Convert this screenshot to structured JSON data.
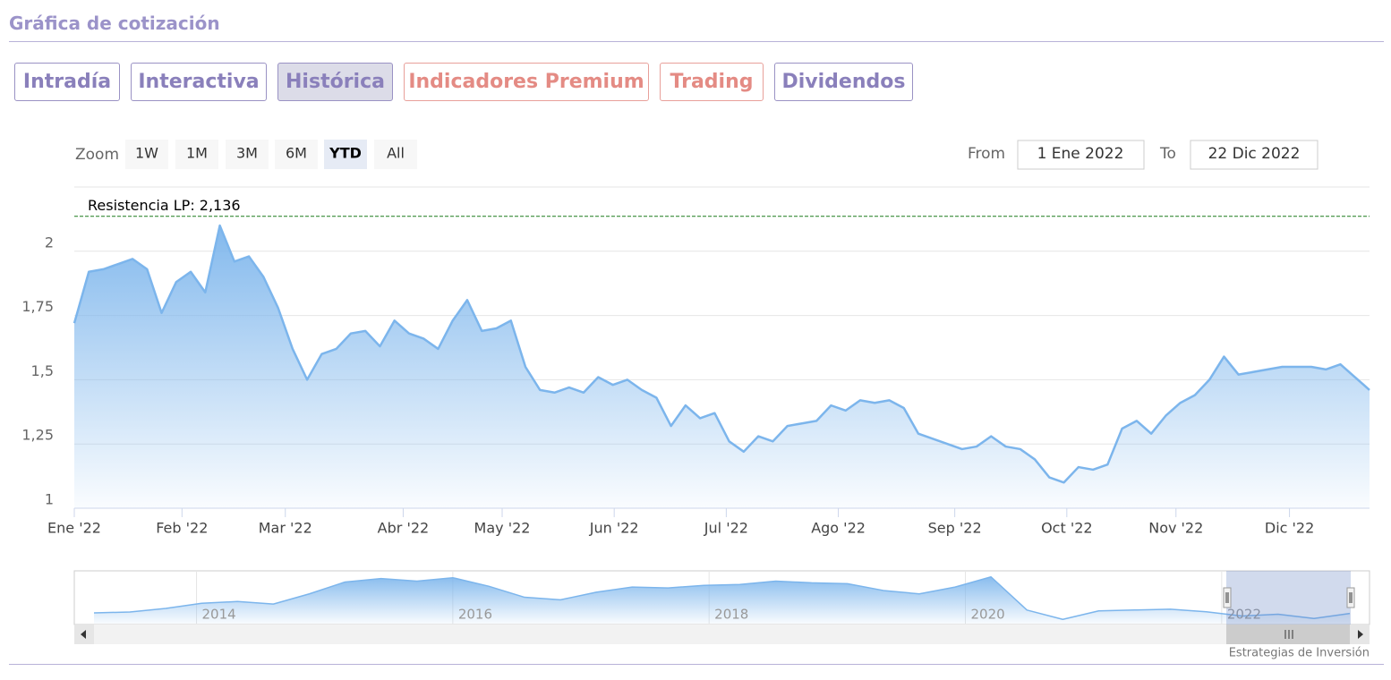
{
  "header": {
    "title": "Gráfica de cotización"
  },
  "tabs": {
    "items": [
      "Intradía",
      "Interactiva",
      "Histórica",
      "Indicadores Premium",
      "Trading",
      "Dividendos"
    ],
    "selected": 2
  },
  "zoom": {
    "label": "Zoom",
    "buttons": [
      "1W",
      "1M",
      "3M",
      "6M",
      "YTD",
      "All"
    ],
    "selected": 4
  },
  "range": {
    "from_label": "From",
    "from": "1 Ene 2022",
    "to_label": "To",
    "to": "22 Dic 2022"
  },
  "chart_data": {
    "type": "area",
    "color": "#7cb5ec",
    "values": [
      1.72,
      1.92,
      1.93,
      1.95,
      1.97,
      1.93,
      1.76,
      1.88,
      1.92,
      1.84,
      2.1,
      1.96,
      1.98,
      1.9,
      1.78,
      1.62,
      1.5,
      1.6,
      1.62,
      1.68,
      1.69,
      1.63,
      1.73,
      1.68,
      1.66,
      1.62,
      1.73,
      1.81,
      1.69,
      1.7,
      1.73,
      1.55,
      1.46,
      1.45,
      1.47,
      1.45,
      1.51,
      1.48,
      1.5,
      1.46,
      1.43,
      1.32,
      1.4,
      1.35,
      1.37,
      1.26,
      1.22,
      1.28,
      1.26,
      1.32,
      1.33,
      1.34,
      1.4,
      1.38,
      1.42,
      1.41,
      1.42,
      1.39,
      1.29,
      1.27,
      1.25,
      1.23,
      1.24,
      1.28,
      1.24,
      1.23,
      1.19,
      1.12,
      1.1,
      1.16,
      1.15,
      1.17,
      1.31,
      1.34,
      1.29,
      1.36,
      1.41,
      1.44,
      1.5,
      1.59,
      1.52,
      1.53,
      1.54,
      1.55,
      1.55,
      1.55,
      1.54,
      1.56,
      1.51,
      1.46
    ],
    "xlim": [
      0,
      89
    ],
    "xticks": [
      {
        "value": 0,
        "label": "Ene '22"
      },
      {
        "value": 7.4,
        "label": "Feb '22"
      },
      {
        "value": 14.5,
        "label": "Mar '22"
      },
      {
        "value": 22.6,
        "label": "Abr '22"
      },
      {
        "value": 29.4,
        "label": "May '22"
      },
      {
        "value": 37.1,
        "label": "Jun '22"
      },
      {
        "value": 44.8,
        "label": "Jul '22"
      },
      {
        "value": 52.5,
        "label": "Ago '22"
      },
      {
        "value": 60.5,
        "label": "Sep '22"
      },
      {
        "value": 68.2,
        "label": "Oct '22"
      },
      {
        "value": 75.7,
        "label": "Nov '22"
      },
      {
        "value": 83.5,
        "label": "Dic '22"
      }
    ],
    "ylim": [
      1,
      2.25
    ],
    "yticks": [
      1,
      {
        "value": 1.25,
        "label": "1,25"
      },
      {
        "value": 1.5,
        "label": "1,5"
      },
      {
        "value": 1.75,
        "label": "1,75"
      },
      2
    ],
    "grid": true,
    "plot_line": {
      "value": 2.136,
      "label": "Resistencia LP: 2,136",
      "color": "#1a7a1a"
    },
    "navigator": {
      "type": "area",
      "color": "#7cb5ec",
      "values": [
        1.26,
        1.37,
        1.79,
        2.4,
        2.6,
        2.3,
        3.5,
        4.9,
        5.3,
        5.0,
        5.4,
        4.4,
        3.1,
        2.8,
        3.7,
        4.3,
        4.2,
        4.5,
        4.6,
        5.0,
        4.8,
        4.7,
        3.9,
        3.5,
        4.3,
        5.5,
        1.6,
        0.5,
        1.5,
        1.6,
        1.7,
        1.4,
        0.9,
        1.1,
        0.6,
        1.2
      ],
      "xlim": [
        2013.2,
        2023
      ],
      "xticks": [
        2014,
        2016,
        2018,
        2020,
        2022
      ],
      "ylim": [
        0,
        6
      ]
    }
  },
  "credits": "Estrategias de Inversión"
}
